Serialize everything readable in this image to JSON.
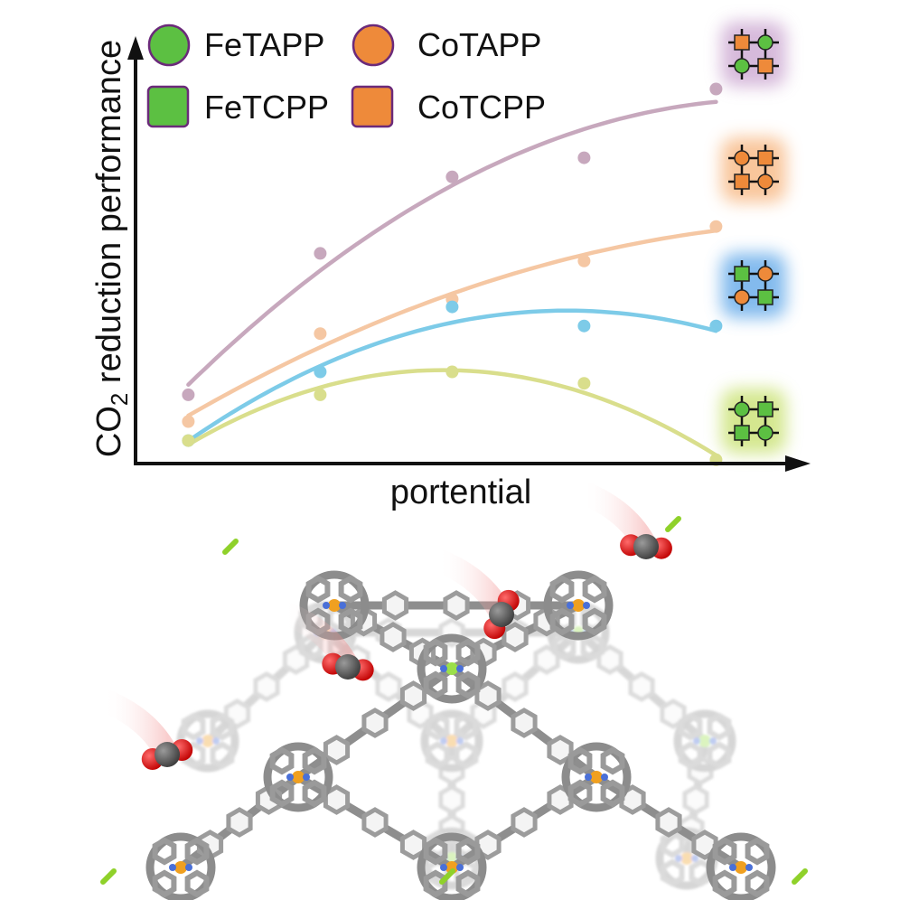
{
  "chart_data": {
    "type": "line",
    "xlabel": "portential",
    "ylabel_main": "CO",
    "ylabel_sub": "2",
    "ylabel_rest": " reduction performance",
    "x": [
      1,
      2,
      3,
      4,
      5
    ],
    "xlim": [
      0.6,
      5.6
    ],
    "ylim": [
      0,
      10
    ],
    "legend": {
      "placement": "top-left",
      "entries": [
        {
          "label": "FeTAPP",
          "marker": "circle",
          "color": "#5cc042"
        },
        {
          "label": "CoTAPP",
          "marker": "circle",
          "color": "#ee8a3a"
        },
        {
          "label": "FeTCPP",
          "marker": "square",
          "color": "#5cc042"
        },
        {
          "label": "CoTCPP",
          "marker": "square",
          "color": "#ee8a3a"
        }
      ]
    },
    "series": [
      {
        "color": "#c7a8bd",
        "glow": "#c9a3cf",
        "values": [
          1.8,
          5.5,
          7.5,
          8.0,
          9.8
        ],
        "grid": [
          "square",
          "circle",
          "circle",
          "square"
        ]
      },
      {
        "color": "#f5c7a3",
        "glow": "#f7b37a",
        "values": [
          1.1,
          3.4,
          4.3,
          5.3,
          6.2
        ],
        "grid": [
          "circle",
          "square",
          "square",
          "circle"
        ]
      },
      {
        "color": "#7dcbe8",
        "glow": "#5aa4e8",
        "values": [
          0.6,
          2.4,
          4.1,
          3.6,
          3.6
        ],
        "grid": [
          "square",
          "circle",
          "circle",
          "square"
        ]
      },
      {
        "color": "#d9de8c",
        "glow": "#c6e06a",
        "values": [
          0.6,
          1.8,
          2.4,
          2.1,
          0.1
        ],
        "grid": [
          "circle",
          "square",
          "square",
          "circle"
        ]
      }
    ]
  },
  "icon_colors": {
    "green": "#5cc042",
    "orange": "#ee8a3a",
    "outline": "#6b2a7a"
  }
}
